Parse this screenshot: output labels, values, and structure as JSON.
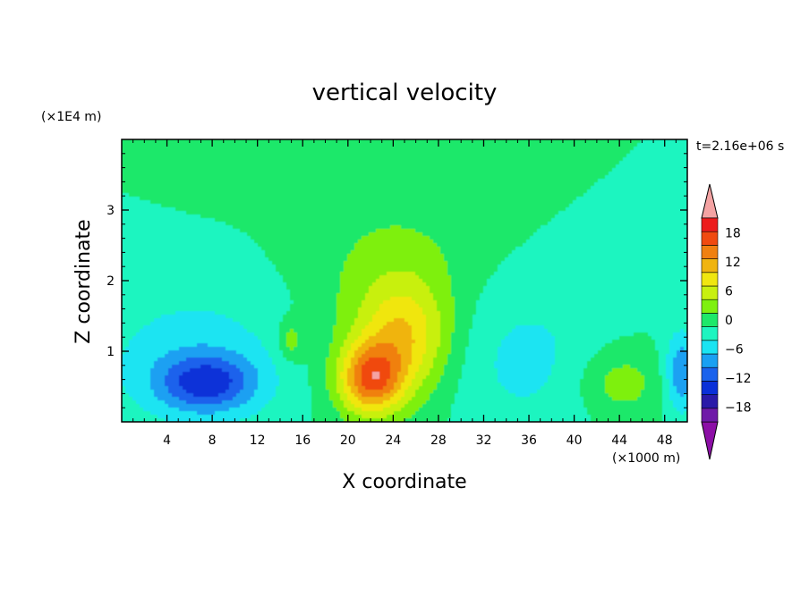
{
  "chart_data": {
    "type": "heatmap",
    "title": "vertical velocity",
    "xlabel": "X coordinate",
    "ylabel": "Z coordinate",
    "x_unit": "(×1000 m)",
    "y_unit": "(×1E4 m)",
    "time_label": "t=2.16e+06 s",
    "xlim": [
      0,
      50
    ],
    "ylim": [
      0,
      4
    ],
    "x_ticks": [
      4,
      8,
      12,
      16,
      20,
      24,
      28,
      32,
      36,
      40,
      44,
      48
    ],
    "y_ticks": [
      1,
      2,
      3
    ],
    "x_tick_labels": [
      "4",
      "8",
      "12",
      "16",
      "20",
      "24",
      "28",
      "32",
      "36",
      "40",
      "44",
      "48"
    ],
    "y_tick_labels": [
      "1",
      "2",
      "3"
    ],
    "colorbar": {
      "tick_labels": [
        "18",
        "12",
        "6",
        "0",
        "−6",
        "−12",
        "−18"
      ],
      "tick_values": [
        18,
        12,
        6,
        0,
        -6,
        -12,
        -18
      ],
      "levels": [
        -21,
        -18,
        -15,
        -12,
        -9,
        -6,
        -3,
        0,
        3,
        6,
        9,
        12,
        15,
        18,
        21
      ],
      "colors": [
        "#6f1aa8",
        "#2a1aa8",
        "#0a30d8",
        "#1a62ec",
        "#1aa0f2",
        "#1ae4f2",
        "#1ef5c0",
        "#1ee86a",
        "#7ef010",
        "#c8f010",
        "#f0e610",
        "#f0b410",
        "#f08010",
        "#f04a10",
        "#ec1c1c"
      ],
      "under_color": "#8c0fa6",
      "over_color": "#f4a3a3",
      "extend": "both"
    },
    "field": {
      "background": 0,
      "features": [
        {
          "name": "updraft-core",
          "x": 22,
          "z": 0.6,
          "sx": 2.0,
          "sz": 0.35,
          "amp": 16
        },
        {
          "name": "updraft-tilt",
          "x": 25,
          "z": 1.2,
          "sx": 2.8,
          "sz": 0.55,
          "amp": 9
        },
        {
          "name": "updraft-broad",
          "x": 24,
          "z": 1.5,
          "sx": 5.0,
          "sz": 1.0,
          "amp": 4
        },
        {
          "name": "upper-plume",
          "x": 25,
          "z": 2.5,
          "sx": 6.5,
          "sz": 0.6,
          "amp": 1.2
        },
        {
          "name": "west-downdraft",
          "x": 7.5,
          "z": 0.55,
          "sx": 3.0,
          "sz": 0.28,
          "amp": -11
        },
        {
          "name": "west-subsidence",
          "x": 6.5,
          "z": 0.9,
          "sx": 6.5,
          "sz": 0.75,
          "amp": -4.5
        },
        {
          "name": "east-downdraft",
          "x": 35,
          "z": 0.9,
          "sx": 5.5,
          "sz": 0.8,
          "amp": -4
        },
        {
          "name": "east-edge-downdraft",
          "x": 49.5,
          "z": 0.7,
          "sx": 1.0,
          "sz": 0.4,
          "amp": -9
        },
        {
          "name": "east-updraft",
          "x": 44,
          "z": 0.55,
          "sx": 2.6,
          "sz": 0.35,
          "amp": 5
        },
        {
          "name": "small-updraft",
          "x": 15,
          "z": 1.15,
          "sx": 0.8,
          "sz": 0.2,
          "amp": 5
        },
        {
          "name": "upper-left-updraft",
          "x": 14,
          "z": 3.55,
          "sx": 5.0,
          "sz": 0.35,
          "amp": 1.4
        }
      ]
    }
  }
}
